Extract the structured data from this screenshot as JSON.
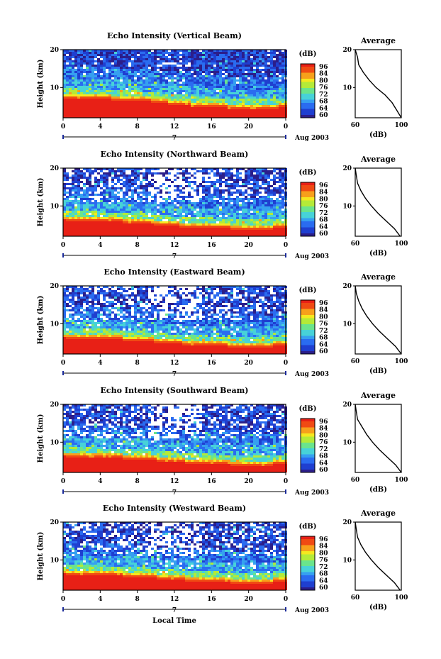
{
  "xlabel": "Local Time",
  "colors": {
    "scale": [
      "#2b1e8a",
      "#1f3fd0",
      "#2a6cf0",
      "#36a0f0",
      "#47d2d8",
      "#6ae48c",
      "#b4ea38",
      "#f5e81f",
      "#f7a01b",
      "#f04a13",
      "#e82016"
    ],
    "white_gap": "#ffffff"
  },
  "chart_data": [
    {
      "type": "heatmap",
      "title": "Echo Intensity (Vertical Beam)",
      "ylabel": "Height (km)",
      "xticks": [
        "0",
        "4",
        "8",
        "12",
        "16",
        "20",
        "0"
      ],
      "xlim": [
        0,
        24
      ],
      "ylim": [
        2,
        20
      ],
      "yticks": [
        "20",
        "10"
      ],
      "date_labels": [
        "7",
        "Aug 2003"
      ],
      "colorbar": {
        "label": "(dB)",
        "range": [
          60,
          96
        ],
        "ticks": [
          "96",
          "84",
          "80",
          "76",
          "72",
          "68",
          "64",
          "60"
        ]
      },
      "red_top_km": [
        7.5,
        7.3,
        7.2,
        7.0,
        6.8,
        6.5,
        6.0,
        5.5,
        5.2,
        5.0,
        4.6,
        4.5,
        4.6,
        5.0
      ],
      "gaps": "few",
      "average_profile": {
        "title": "Average",
        "xlabel": "(dB)",
        "xticks": [
          "60",
          "100"
        ],
        "yticks": [
          "20",
          "10"
        ],
        "xlim": [
          60,
          100
        ],
        "ylim": [
          2,
          20
        ],
        "height_km": [
          20,
          18,
          16,
          14,
          12,
          10,
          8,
          6,
          4,
          2
        ],
        "db": [
          60,
          62,
          63,
          67,
          72,
          78,
          86,
          92,
          96,
          100
        ]
      }
    },
    {
      "type": "heatmap",
      "title": "Echo Intensity (Northward Beam)",
      "ylabel": "Height (km)",
      "xticks": [
        "0",
        "4",
        "8",
        "12",
        "16",
        "20",
        "0"
      ],
      "xlim": [
        0,
        24
      ],
      "ylim": [
        2,
        20
      ],
      "yticks": [
        "20",
        "10"
      ],
      "date_labels": [
        "7",
        "Aug 2003"
      ],
      "colorbar": {
        "label": "(dB)",
        "range": [
          60,
          96
        ],
        "ticks": [
          "96",
          "84",
          "80",
          "76",
          "72",
          "68",
          "64",
          "60"
        ]
      },
      "red_top_km": [
        6.5,
        6.4,
        6.2,
        6.0,
        5.8,
        5.5,
        5.0,
        4.7,
        4.5,
        4.4,
        4.2,
        4.0,
        4.2,
        4.5
      ],
      "gaps": "many",
      "average_profile": {
        "title": "Average",
        "xlabel": "(dB)",
        "xticks": [
          "60",
          "100"
        ],
        "yticks": [
          "20",
          "10"
        ],
        "xlim": [
          60,
          100
        ],
        "ylim": [
          2,
          20
        ],
        "height_km": [
          20,
          18,
          16,
          14,
          12,
          10,
          8,
          6,
          4,
          2
        ],
        "db": [
          60,
          61,
          62,
          65,
          69,
          74,
          80,
          87,
          94,
          99
        ]
      }
    },
    {
      "type": "heatmap",
      "title": "Echo Intensity (Eastward Beam)",
      "ylabel": "Height (km)",
      "xticks": [
        "0",
        "4",
        "8",
        "12",
        "16",
        "20",
        "0"
      ],
      "xlim": [
        0,
        24
      ],
      "ylim": [
        2,
        20
      ],
      "yticks": [
        "20",
        "10"
      ],
      "date_labels": [
        "7",
        "Aug 2003"
      ],
      "colorbar": {
        "label": "(dB)",
        "range": [
          60,
          96
        ],
        "ticks": [
          "96",
          "84",
          "80",
          "76",
          "72",
          "68",
          "64",
          "60"
        ]
      },
      "red_top_km": [
        6.5,
        6.3,
        6.2,
        6.0,
        5.8,
        5.5,
        5.0,
        4.8,
        4.5,
        4.3,
        4.2,
        4.1,
        4.2,
        4.6
      ],
      "gaps": "many",
      "average_profile": {
        "title": "Average",
        "xlabel": "(dB)",
        "xticks": [
          "60",
          "100"
        ],
        "yticks": [
          "20",
          "10"
        ],
        "xlim": [
          60,
          100
        ],
        "ylim": [
          2,
          20
        ],
        "height_km": [
          20,
          18,
          16,
          14,
          12,
          10,
          8,
          6,
          4,
          2
        ],
        "db": [
          60,
          61,
          63,
          66,
          70,
          75,
          81,
          88,
          95,
          100
        ]
      }
    },
    {
      "type": "heatmap",
      "title": "Echo Intensity (Southward Beam)",
      "ylabel": "Height (km)",
      "xticks": [
        "0",
        "4",
        "8",
        "12",
        "16",
        "20",
        "0"
      ],
      "xlim": [
        0,
        24
      ],
      "ylim": [
        2,
        20
      ],
      "yticks": [
        "20",
        "10"
      ],
      "date_labels": [
        "7",
        "Aug 2003"
      ],
      "colorbar": {
        "label": "(dB)",
        "range": [
          60,
          96
        ],
        "ticks": [
          "96",
          "84",
          "80",
          "76",
          "72",
          "68",
          "64",
          "60"
        ]
      },
      "red_top_km": [
        6.5,
        6.3,
        6.1,
        6.0,
        5.8,
        5.5,
        5.1,
        4.8,
        4.6,
        4.4,
        4.2,
        4.0,
        4.2,
        4.5
      ],
      "gaps": "many",
      "average_profile": {
        "title": "Average",
        "xlabel": "(dB)",
        "xticks": [
          "60",
          "100"
        ],
        "yticks": [
          "20",
          "10"
        ],
        "xlim": [
          60,
          100
        ],
        "ylim": [
          2,
          20
        ],
        "height_km": [
          20,
          18,
          16,
          14,
          12,
          10,
          8,
          6,
          4,
          2
        ],
        "db": [
          60,
          61,
          62,
          66,
          70,
          75,
          81,
          88,
          95,
          100
        ]
      }
    },
    {
      "type": "heatmap",
      "title": "Echo Intensity (Westward Beam)",
      "ylabel": "Height (km)",
      "xticks": [
        "0",
        "4",
        "8",
        "12",
        "16",
        "20",
        "0"
      ],
      "xlim": [
        0,
        24
      ],
      "ylim": [
        2,
        20
      ],
      "yticks": [
        "20",
        "10"
      ],
      "date_labels": [
        "7",
        "Aug 2003"
      ],
      "colorbar": {
        "label": "(dB)",
        "range": [
          60,
          96
        ],
        "ticks": [
          "96",
          "84",
          "80",
          "76",
          "72",
          "68",
          "64",
          "60"
        ]
      },
      "red_top_km": [
        6.5,
        6.3,
        6.2,
        6.0,
        5.8,
        5.5,
        5.1,
        4.8,
        4.6,
        4.4,
        4.2,
        4.1,
        4.2,
        4.6
      ],
      "gaps": "many",
      "average_profile": {
        "title": "Average",
        "xlabel": "(dB)",
        "xticks": [
          "60",
          "100"
        ],
        "yticks": [
          "20",
          "10"
        ],
        "xlim": [
          60,
          100
        ],
        "ylim": [
          2,
          20
        ],
        "height_km": [
          20,
          18,
          16,
          14,
          12,
          10,
          8,
          6,
          4,
          2
        ],
        "db": [
          60,
          61,
          62,
          65,
          69,
          74,
          80,
          87,
          94,
          99
        ]
      }
    }
  ]
}
